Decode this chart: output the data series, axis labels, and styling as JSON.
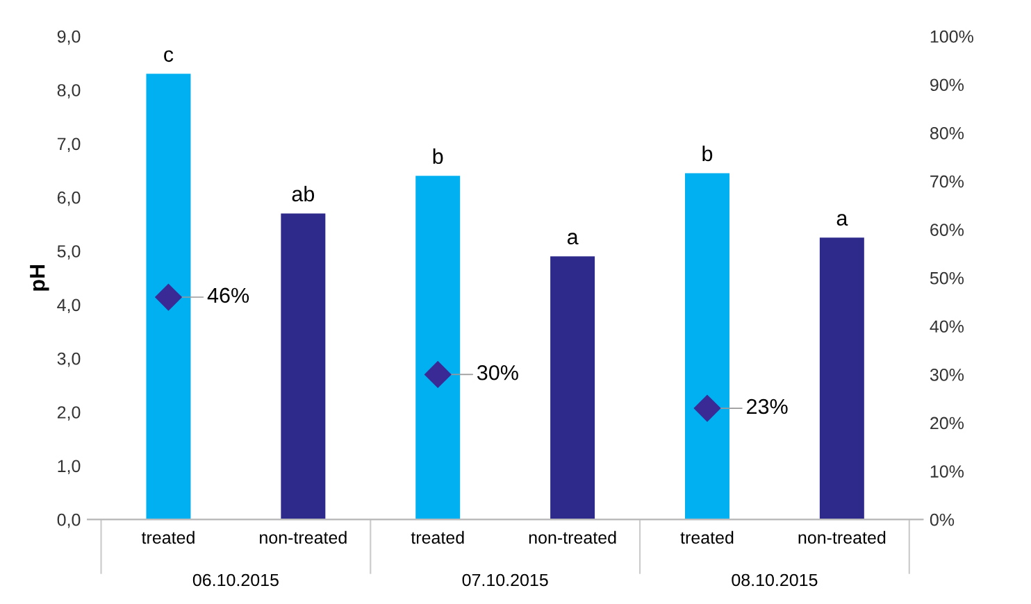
{
  "chart_data": {
    "type": "bar",
    "ylabel": "pH",
    "categories": [
      "treated",
      "non-treated",
      "treated",
      "non-treated",
      "treated",
      "non-treated"
    ],
    "series": [
      {
        "colors": [
          "#00b0f0",
          "#2e2a8c",
          "#00b0f0",
          "#2e2a8c",
          "#00b0f0",
          "#2e2a8c"
        ],
        "values": [
          8.3,
          5.7,
          6.4,
          4.9,
          6.45,
          5.25
        ],
        "value_labels": [
          "c",
          "ab",
          "b",
          "a",
          "b",
          "a"
        ]
      },
      {
        "type": "scatter",
        "axis": "y2",
        "color": "#3a2a96",
        "marker": "diamond",
        "values": [
          46,
          null,
          30,
          null,
          23,
          null
        ],
        "value_labels": [
          "46%",
          null,
          "30%",
          null,
          "23%",
          null
        ]
      }
    ],
    "annotations": [
      "06.10.2015",
      "07.10.2015",
      "08.10.2015"
    ],
    "ylim": [
      0,
      9
    ],
    "yticks": [
      {
        "value": 0,
        "label": "0,0"
      },
      {
        "value": 1,
        "label": "1,0"
      },
      {
        "value": 2,
        "label": "2,0"
      },
      {
        "value": 3,
        "label": "3,0"
      },
      {
        "value": 4,
        "label": "4,0"
      },
      {
        "value": 5,
        "label": "5,0"
      },
      {
        "value": 6,
        "label": "6,0"
      },
      {
        "value": 7,
        "label": "7,0"
      },
      {
        "value": 8,
        "label": "8,0"
      },
      {
        "value": 9,
        "label": "9,0"
      }
    ],
    "y2lim": [
      0,
      100
    ],
    "y2ticks": [
      {
        "value": 0,
        "label": "0%"
      },
      {
        "value": 10,
        "label": "10%"
      },
      {
        "value": 20,
        "label": "20%"
      },
      {
        "value": 30,
        "label": "30%"
      },
      {
        "value": 40,
        "label": "40%"
      },
      {
        "value": 50,
        "label": "50%"
      },
      {
        "value": 60,
        "label": "60%"
      },
      {
        "value": 70,
        "label": "70%"
      },
      {
        "value": 80,
        "label": "80%"
      },
      {
        "value": 90,
        "label": "90%"
      },
      {
        "value": 100,
        "label": "100%"
      }
    ],
    "grid": false,
    "legend": false
  }
}
